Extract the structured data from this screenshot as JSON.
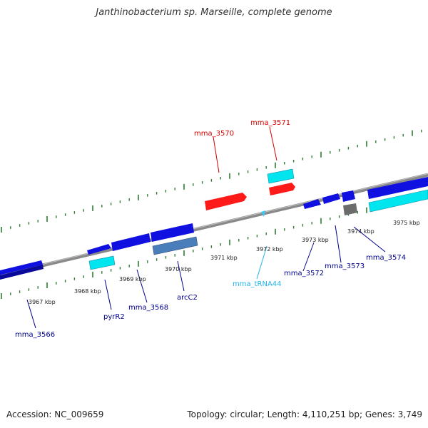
{
  "title": "Janthinobacterium sp. Marseille, complete genome",
  "footer": {
    "accession": "Accession: NC_009659",
    "summary": "Topology: circular; Length: 4,110,251 bp; Genes: 3,749"
  },
  "colors": {
    "backbone": "#8a8a8a",
    "tick": "#2e7d32",
    "cds": "#1010e0",
    "cds_upper": "#1a1ae8",
    "rRNA": "#ff1a1a",
    "rna_cyan": "#00e5ee",
    "tRNA": "#3dc8ef",
    "gene_gray": "#6b6b6b",
    "steel": "#4a7ebb",
    "label_blue": "#00008b",
    "label_red": "#d40000",
    "label_cyan": "#22b4e8"
  },
  "ticks": [
    {
      "label": "3967 kbp"
    },
    {
      "label": "3968 kbp"
    },
    {
      "label": "3969 kbp"
    },
    {
      "label": "3970 kbp"
    },
    {
      "label": "3971 kbp"
    },
    {
      "label": "3972 kbp"
    },
    {
      "label": "3973 kbp"
    },
    {
      "label": "3974 kbp"
    },
    {
      "label": "3975 kbp"
    }
  ],
  "genes": [
    {
      "name": "mma_3566",
      "color": "label_blue"
    },
    {
      "name": "pyrR2",
      "color": "label_blue"
    },
    {
      "name": "mma_3568",
      "color": "label_blue"
    },
    {
      "name": "arcC2",
      "color": "label_blue"
    },
    {
      "name": "mma_3570",
      "color": "label_red"
    },
    {
      "name": "mma_3571",
      "color": "label_red"
    },
    {
      "name": "mma_tRNA44",
      "color": "label_cyan"
    },
    {
      "name": "mma_3572",
      "color": "label_blue"
    },
    {
      "name": "mma_3573",
      "color": "label_blue"
    },
    {
      "name": "mma_3574",
      "color": "label_blue"
    }
  ]
}
